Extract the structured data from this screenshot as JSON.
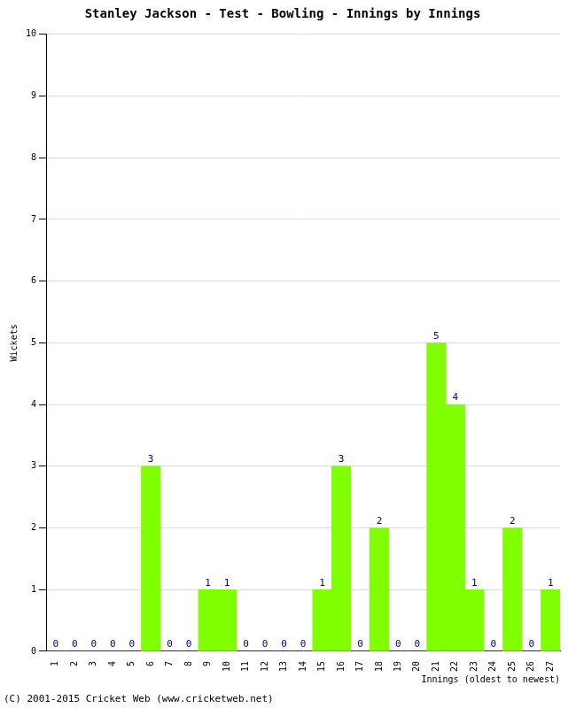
{
  "chart_data": {
    "type": "bar",
    "title": "Stanley Jackson - Test - Bowling - Innings by Innings",
    "x_label": "Innings (oldest to newest)",
    "y_label": "Wickets",
    "annotations": [
      "(C) 2001-2015 Cricket Web (www.cricketweb.net)"
    ],
    "categories": [
      "1",
      "2",
      "3",
      "4",
      "5",
      "6",
      "7",
      "8",
      "9",
      "10",
      "11",
      "12",
      "13",
      "14",
      "15",
      "16",
      "17",
      "18",
      "19",
      "20",
      "21",
      "22",
      "23",
      "24",
      "25",
      "26",
      "27"
    ],
    "values": [
      0,
      0,
      0,
      0,
      0,
      3,
      0,
      0,
      1,
      1,
      0,
      0,
      0,
      0,
      1,
      3,
      0,
      2,
      0,
      0,
      5,
      4,
      1,
      0,
      2,
      0,
      1
    ],
    "color": "#80ff00",
    "ylim": [
      0,
      10
    ],
    "yticks": [
      0,
      1,
      2,
      3,
      4,
      5,
      6,
      7,
      8,
      9,
      10
    ],
    "grid": true,
    "data_labels": true
  }
}
